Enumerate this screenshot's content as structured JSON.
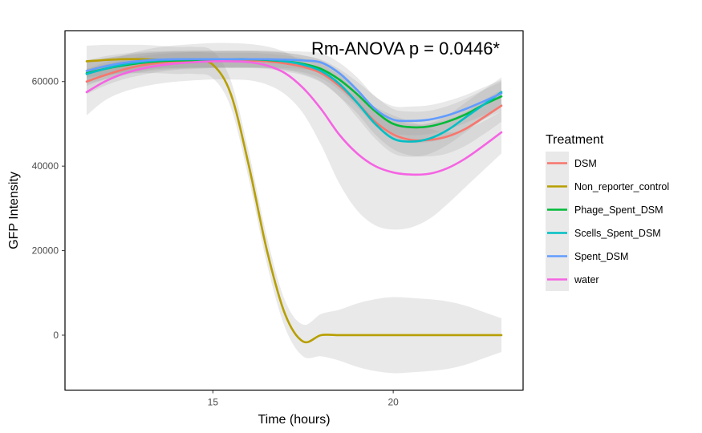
{
  "chart_data": {
    "type": "line",
    "annotation": "Rm-ANOVA p = 0.0446*",
    "xlabel": "Time (hours)",
    "ylabel": "GFP Intensity",
    "xlim": [
      10.9,
      23.6
    ],
    "ylim": [
      -13000,
      72000
    ],
    "x_ticks": [
      {
        "value": 15,
        "label": "15"
      },
      {
        "value": 20,
        "label": "20"
      }
    ],
    "y_ticks": [
      {
        "value": 0,
        "label": "0"
      },
      {
        "value": 20000,
        "label": "20000"
      },
      {
        "value": 40000,
        "label": "40000"
      },
      {
        "value": 60000,
        "label": "60000"
      }
    ],
    "grid": false,
    "legend_title": "Treatment",
    "legend_position": "right",
    "x": [
      11.5,
      12,
      12.5,
      13,
      13.5,
      14,
      14.5,
      15,
      15.5,
      16,
      16.5,
      17,
      17.5,
      18,
      18.5,
      19,
      19.5,
      20,
      20.5,
      21,
      21.5,
      22,
      22.5,
      23
    ],
    "series": [
      {
        "name": "DSM",
        "color": "#F8766D",
        "values": [
          60000,
          61500,
          62800,
          63800,
          64400,
          64800,
          65000,
          65000,
          65000,
          65000,
          64800,
          64300,
          63500,
          62000,
          59000,
          55000,
          50500,
          47500,
          46200,
          46200,
          47000,
          48800,
          51500,
          54300
        ],
        "ribbon_lower": [
          57000,
          59000,
          60500,
          61500,
          62300,
          62800,
          63000,
          63200,
          63200,
          63200,
          63000,
          62400,
          61500,
          59800,
          56500,
          52500,
          47500,
          44000,
          42500,
          42300,
          43000,
          44800,
          47500,
          50500
        ],
        "ribbon_upper": [
          63000,
          64000,
          65000,
          66000,
          66500,
          66800,
          67000,
          66800,
          66800,
          66800,
          66600,
          66200,
          65500,
          64200,
          61500,
          57500,
          53500,
          51000,
          49900,
          50100,
          51000,
          52800,
          55500,
          58100
        ]
      },
      {
        "name": "Non_reporter_control",
        "color": "#B79F00",
        "values": [
          64800,
          65100,
          65300,
          65300,
          65200,
          65000,
          65000,
          64000,
          57000,
          40000,
          20000,
          5000,
          -1500,
          0,
          0,
          0,
          0,
          0,
          0,
          0,
          0,
          0,
          0,
          0
        ],
        "ribbon_lower": [
          61000,
          61500,
          62000,
          62000,
          62000,
          61800,
          61800,
          60800,
          53800,
          36800,
          16800,
          1800,
          -5000,
          -5000,
          -6000,
          -7500,
          -8500,
          -9000,
          -8800,
          -8500,
          -8000,
          -7000,
          -5500,
          -4000
        ],
        "ribbon_upper": [
          68500,
          68700,
          68700,
          68700,
          68500,
          68200,
          68200,
          67200,
          60200,
          43200,
          23200,
          8200,
          2500,
          5000,
          6000,
          7500,
          8500,
          9000,
          8800,
          8500,
          8000,
          7000,
          5500,
          4000
        ]
      },
      {
        "name": "Phage_Spent_DSM",
        "color": "#00BA38",
        "values": [
          62000,
          63000,
          63800,
          64400,
          64800,
          65000,
          65100,
          65200,
          65300,
          65300,
          65100,
          64800,
          64200,
          63000,
          60500,
          57000,
          53000,
          50000,
          49200,
          49400,
          50500,
          52200,
          54500,
          56500
        ],
        "ribbon_lower": [
          59500,
          60500,
          61500,
          62200,
          62700,
          63000,
          63200,
          63300,
          63400,
          63400,
          63200,
          62800,
          62200,
          60800,
          58000,
          54000,
          49500,
          46500,
          45500,
          45700,
          46800,
          48500,
          51000,
          53000
        ],
        "ribbon_upper": [
          64500,
          65500,
          66100,
          66600,
          66900,
          67000,
          67000,
          67100,
          67200,
          67200,
          67000,
          66800,
          66200,
          65200,
          63000,
          60000,
          56500,
          53500,
          52900,
          53100,
          54200,
          55900,
          58000,
          60000
        ]
      },
      {
        "name": "Scells_Spent_DSM",
        "color": "#00BFC4",
        "values": [
          61800,
          63000,
          64000,
          64600,
          65000,
          65200,
          65300,
          65300,
          65300,
          65300,
          65200,
          64800,
          64000,
          62500,
          59500,
          55000,
          50000,
          46500,
          45800,
          46500,
          48500,
          51500,
          54500,
          57500
        ],
        "ribbon_lower": [
          59000,
          60500,
          61800,
          62500,
          63000,
          63200,
          63300,
          63300,
          63300,
          63300,
          63200,
          62800,
          61800,
          60000,
          56500,
          51500,
          46500,
          43000,
          42200,
          42900,
          45000,
          48000,
          51000,
          54000
        ],
        "ribbon_upper": [
          64600,
          65500,
          66200,
          66700,
          67000,
          67200,
          67300,
          67300,
          67300,
          67300,
          67200,
          66800,
          66200,
          65000,
          62500,
          58500,
          53500,
          50000,
          49400,
          50100,
          52000,
          55000,
          58000,
          61000
        ]
      },
      {
        "name": "Spent_DSM",
        "color": "#619CFF",
        "values": [
          62500,
          63600,
          64400,
          64900,
          65200,
          65300,
          65300,
          65300,
          65300,
          65300,
          65300,
          65200,
          65000,
          64500,
          62000,
          58000,
          53500,
          51000,
          50700,
          51000,
          52000,
          53500,
          55300,
          57200
        ],
        "ribbon_lower": [
          60000,
          61200,
          62200,
          62800,
          63200,
          63300,
          63300,
          63300,
          63300,
          63300,
          63300,
          63200,
          62900,
          62300,
          59500,
          55000,
          50500,
          47800,
          47300,
          47600,
          48600,
          50200,
          52000,
          54000
        ],
        "ribbon_upper": [
          65000,
          66000,
          66600,
          67000,
          67200,
          67300,
          67300,
          67300,
          67300,
          67300,
          67300,
          67200,
          67100,
          66700,
          64500,
          61000,
          56500,
          54200,
          54100,
          54400,
          55400,
          56800,
          58600,
          60400
        ]
      },
      {
        "name": "water",
        "color": "#F564E3",
        "values": [
          57500,
          60000,
          61800,
          63000,
          63800,
          64300,
          64600,
          64800,
          64800,
          64600,
          63800,
          62000,
          58500,
          53500,
          47500,
          43000,
          40000,
          38500,
          38000,
          38200,
          39500,
          41800,
          44800,
          48000
        ],
        "ribbon_lower": [
          52000,
          55500,
          57500,
          58700,
          59500,
          60000,
          60300,
          60500,
          60500,
          60300,
          59300,
          57000,
          52500,
          45000,
          36000,
          29500,
          26000,
          25000,
          25500,
          27500,
          31000,
          35000,
          39000,
          43000
        ],
        "ribbon_upper": [
          63000,
          64500,
          66100,
          67300,
          68100,
          68600,
          68900,
          69100,
          69100,
          68900,
          68300,
          67000,
          64500,
          62000,
          59000,
          56500,
          54000,
          52000,
          50500,
          48900,
          48000,
          48600,
          50600,
          53000
        ]
      }
    ]
  }
}
